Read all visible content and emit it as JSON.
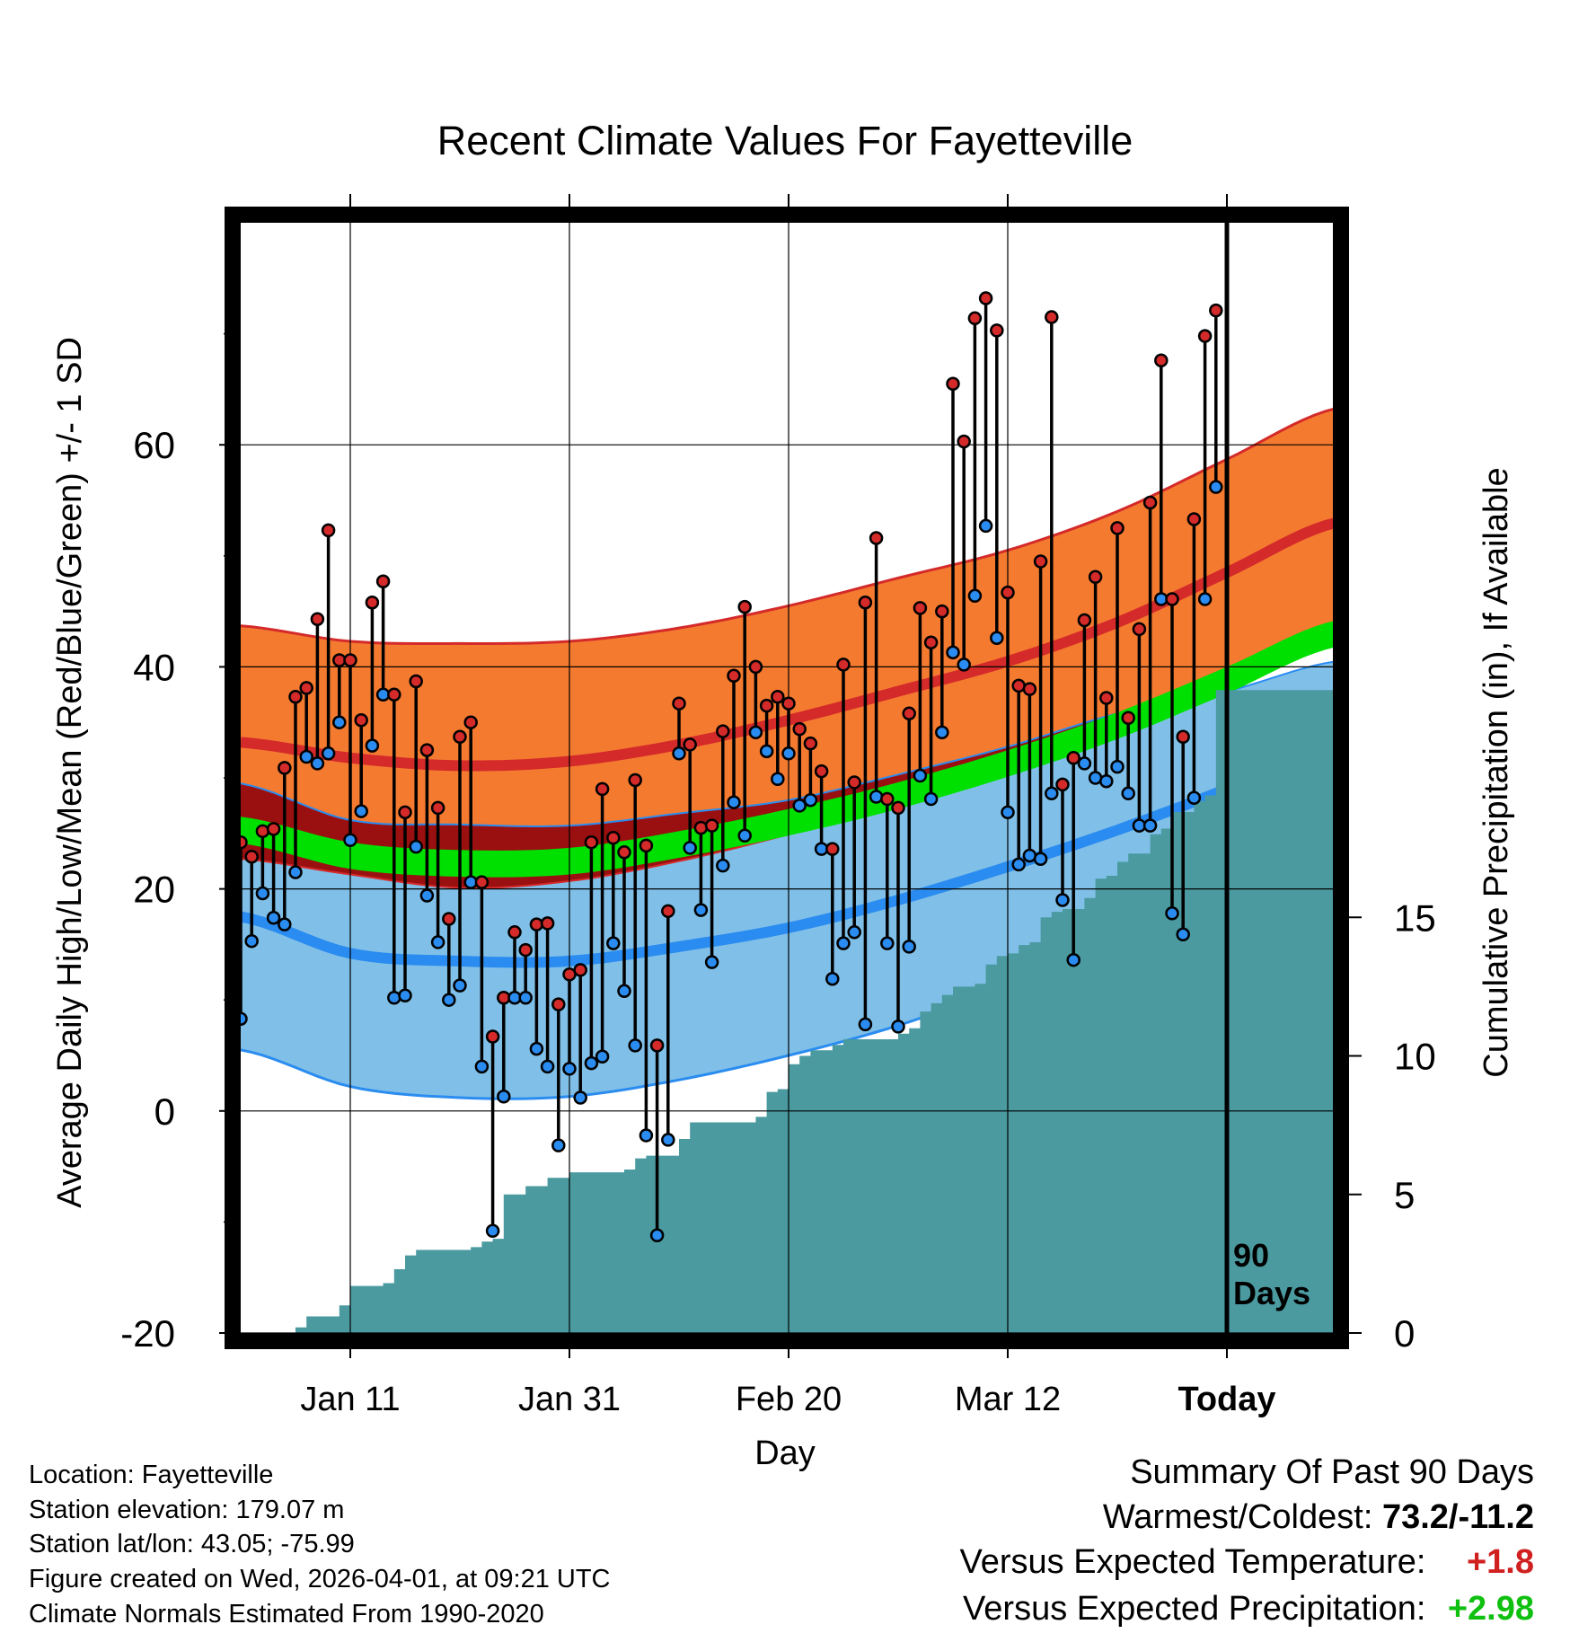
{
  "colors": {
    "high": "#d42a2a",
    "low": "#2a8cf0",
    "mean_band": "#00e000",
    "high_band": "#f47a30",
    "low_band": "#80c0e8",
    "overlap_band": "#9a1010",
    "precip": "#4a9aa0",
    "bar": "#000000",
    "warm_text": "#d02020",
    "wet_text": "#10c010"
  },
  "chart_data": {
    "type": "range-dot",
    "title": "Recent Climate Values For Fayetteville",
    "xlabel": "Day",
    "ylabel": "Average Daily High/Low/Mean (Red/Blue/Green) +/- 1 SD",
    "y2label": "Cumulative Precipitation (in), If Available",
    "ylim": [
      -20,
      80
    ],
    "yticks": [
      "-20",
      "0",
      "20",
      "40",
      "60"
    ],
    "y2lim": [
      0,
      40
    ],
    "y2ticks": [
      "0",
      "5",
      "10",
      "15"
    ],
    "xlim": [
      0,
      100
    ],
    "xtick_days": [
      10,
      30,
      50,
      70,
      90
    ],
    "xtick_labels": [
      "Jan 11",
      "Jan 31",
      "Feb 20",
      "Mar 12",
      "Today"
    ],
    "today_day": 90,
    "today_label_line1": "90",
    "today_label_line2": "Days",
    "normals": {
      "days": [
        0,
        10,
        20,
        30,
        40,
        50,
        60,
        70,
        80,
        90,
        100
      ],
      "high_mean": [
        33.2,
        31.8,
        31.1,
        31.5,
        33.0,
        35.2,
        37.8,
        40.5,
        44.0,
        48.5,
        53.0
      ],
      "high_sd": [
        10.5,
        10.5,
        11.0,
        10.8,
        10.5,
        10.3,
        10.2,
        10.0,
        10.0,
        10.2,
        10.3
      ],
      "low_mean": [
        17.5,
        14.2,
        13.5,
        13.5,
        14.8,
        16.5,
        19.0,
        22.0,
        25.3,
        29.0,
        33.0
      ],
      "low_sd": [
        12.0,
        12.0,
        12.3,
        12.2,
        12.0,
        11.5,
        11.3,
        10.8,
        10.5,
        8.8,
        7.5
      ],
      "mean_mean": [
        25.3,
        23.0,
        22.3,
        22.5,
        24.0,
        26.0,
        28.4,
        31.3,
        34.7,
        38.8,
        43.0
      ],
      "mean_halfwidth": [
        1.2,
        1.2,
        1.2,
        1.2,
        1.2,
        1.2,
        1.2,
        1.2,
        1.2,
        1.2,
        1.2
      ]
    },
    "observations": [
      {
        "day": 0,
        "high": 24.2,
        "low": 8.3
      },
      {
        "day": 1,
        "high": 22.9,
        "low": 15.3
      },
      {
        "day": 2,
        "high": 25.2,
        "low": 19.6
      },
      {
        "day": 3,
        "high": 25.4,
        "low": 17.4
      },
      {
        "day": 4,
        "high": 30.9,
        "low": 16.8
      },
      {
        "day": 5,
        "high": 37.3,
        "low": 21.5
      },
      {
        "day": 6,
        "high": 38.1,
        "low": 31.9
      },
      {
        "day": 7,
        "high": 44.3,
        "low": 31.3
      },
      {
        "day": 8,
        "high": 52.3,
        "low": 32.2
      },
      {
        "day": 9,
        "high": 40.6,
        "low": 35.0
      },
      {
        "day": 10,
        "high": 40.6,
        "low": 24.4
      },
      {
        "day": 11,
        "high": 35.2,
        "low": 27.0
      },
      {
        "day": 12,
        "high": 45.8,
        "low": 32.9
      },
      {
        "day": 13,
        "high": 47.7,
        "low": 37.5
      },
      {
        "day": 14,
        "high": 37.5,
        "low": 10.2
      },
      {
        "day": 15,
        "high": 26.9,
        "low": 10.4
      },
      {
        "day": 16,
        "high": 38.7,
        "low": 23.8
      },
      {
        "day": 17,
        "high": 32.5,
        "low": 19.4
      },
      {
        "day": 18,
        "high": 27.3,
        "low": 15.2
      },
      {
        "day": 19,
        "high": 17.3,
        "low": 10.0
      },
      {
        "day": 20,
        "high": 33.7,
        "low": 11.3
      },
      {
        "day": 21,
        "high": 35.0,
        "low": 20.6
      },
      {
        "day": 22,
        "high": 20.6,
        "low": 4.0
      },
      {
        "day": 23,
        "high": 6.7,
        "low": -10.8
      },
      {
        "day": 24,
        "high": 10.2,
        "low": 1.3
      },
      {
        "day": 25,
        "high": 16.1,
        "low": 10.2
      },
      {
        "day": 26,
        "high": 14.5,
        "low": 10.2
      },
      {
        "day": 27,
        "high": 16.8,
        "low": 5.6
      },
      {
        "day": 28,
        "high": 16.9,
        "low": 4.0
      },
      {
        "day": 29,
        "high": 9.6,
        "low": -3.1
      },
      {
        "day": 30,
        "high": 12.3,
        "low": 3.8
      },
      {
        "day": 31,
        "high": 12.7,
        "low": 1.2
      },
      {
        "day": 32,
        "high": 24.2,
        "low": 4.3
      },
      {
        "day": 33,
        "high": 29.0,
        "low": 4.9
      },
      {
        "day": 34,
        "high": 24.6,
        "low": 15.1
      },
      {
        "day": 35,
        "high": 23.3,
        "low": 10.8
      },
      {
        "day": 36,
        "high": 29.8,
        "low": 5.9
      },
      {
        "day": 37,
        "high": 23.9,
        "low": -2.2
      },
      {
        "day": 38,
        "high": 5.9,
        "low": -11.2
      },
      {
        "day": 39,
        "high": 18.0,
        "low": -2.6
      },
      {
        "day": 40,
        "high": 36.7,
        "low": 32.2
      },
      {
        "day": 41,
        "high": 33.0,
        "low": 23.7
      },
      {
        "day": 42,
        "high": 25.5,
        "low": 18.1
      },
      {
        "day": 43,
        "high": 25.7,
        "low": 13.4
      },
      {
        "day": 44,
        "high": 34.2,
        "low": 22.1
      },
      {
        "day": 45,
        "high": 39.2,
        "low": 27.8
      },
      {
        "day": 46,
        "high": 45.4,
        "low": 24.8
      },
      {
        "day": 47,
        "high": 40.0,
        "low": 34.1
      },
      {
        "day": 48,
        "high": 36.5,
        "low": 32.4
      },
      {
        "day": 49,
        "high": 37.3,
        "low": 29.9
      },
      {
        "day": 50,
        "high": 36.7,
        "low": 32.2
      },
      {
        "day": 51,
        "high": 34.4,
        "low": 27.5
      },
      {
        "day": 52,
        "high": 33.1,
        "low": 28.0
      },
      {
        "day": 53,
        "high": 30.6,
        "low": 23.6
      },
      {
        "day": 54,
        "high": 23.6,
        "low": 11.9
      },
      {
        "day": 55,
        "high": 40.2,
        "low": 15.1
      },
      {
        "day": 56,
        "high": 29.6,
        "low": 16.1
      },
      {
        "day": 57,
        "high": 45.8,
        "low": 7.8
      },
      {
        "day": 58,
        "high": 51.6,
        "low": 28.3
      },
      {
        "day": 59,
        "high": 28.1,
        "low": 15.1
      },
      {
        "day": 60,
        "high": 27.3,
        "low": 7.6
      },
      {
        "day": 61,
        "high": 35.8,
        "low": 14.8
      },
      {
        "day": 62,
        "high": 45.3,
        "low": 30.2
      },
      {
        "day": 63,
        "high": 42.2,
        "low": 28.1
      },
      {
        "day": 64,
        "high": 45.0,
        "low": 34.1
      },
      {
        "day": 65,
        "high": 65.5,
        "low": 41.3
      },
      {
        "day": 66,
        "high": 60.3,
        "low": 40.2
      },
      {
        "day": 67,
        "high": 71.4,
        "low": 46.4
      },
      {
        "day": 68,
        "high": 73.2,
        "low": 52.7
      },
      {
        "day": 69,
        "high": 70.3,
        "low": 42.6
      },
      {
        "day": 70,
        "high": 46.7,
        "low": 26.9
      },
      {
        "day": 71,
        "high": 38.3,
        "low": 22.2
      },
      {
        "day": 72,
        "high": 38.0,
        "low": 23.0
      },
      {
        "day": 73,
        "high": 49.5,
        "low": 22.7
      },
      {
        "day": 74,
        "high": 71.5,
        "low": 28.6
      },
      {
        "day": 75,
        "high": 29.4,
        "low": 19.0
      },
      {
        "day": 76,
        "high": 31.8,
        "low": 13.6
      },
      {
        "day": 77,
        "high": 44.2,
        "low": 31.3
      },
      {
        "day": 78,
        "high": 48.1,
        "low": 30.0
      },
      {
        "day": 79,
        "high": 37.2,
        "low": 29.7
      },
      {
        "day": 80,
        "high": 52.5,
        "low": 31.0
      },
      {
        "day": 81,
        "high": 35.4,
        "low": 28.6
      },
      {
        "day": 82,
        "high": 43.4,
        "low": 25.7
      },
      {
        "day": 83,
        "high": 54.8,
        "low": 25.7
      },
      {
        "day": 84,
        "high": 67.6,
        "low": 46.1
      },
      {
        "day": 85,
        "high": 46.1,
        "low": 17.8
      },
      {
        "day": 86,
        "high": 33.7,
        "low": 15.9
      },
      {
        "day": 87,
        "high": 53.3,
        "low": 28.2
      },
      {
        "day": 88,
        "high": 69.8,
        "low": 46.1
      },
      {
        "day": 89,
        "high": 72.1,
        "low": 56.2
      }
    ],
    "precip_steps": [
      {
        "day": 5,
        "value": 0.2
      },
      {
        "day": 6,
        "value": 0.6
      },
      {
        "day": 8,
        "value": 0.6
      },
      {
        "day": 9,
        "value": 1.0
      },
      {
        "day": 10,
        "value": 1.7
      },
      {
        "day": 13,
        "value": 1.8
      },
      {
        "day": 14,
        "value": 2.3
      },
      {
        "day": 15,
        "value": 2.8
      },
      {
        "day": 16,
        "value": 3.0
      },
      {
        "day": 20,
        "value": 3.0
      },
      {
        "day": 21,
        "value": 3.1
      },
      {
        "day": 22,
        "value": 3.3
      },
      {
        "day": 23,
        "value": 3.4
      },
      {
        "day": 24,
        "value": 5.0
      },
      {
        "day": 26,
        "value": 5.3
      },
      {
        "day": 28,
        "value": 5.6
      },
      {
        "day": 30,
        "value": 5.8
      },
      {
        "day": 35,
        "value": 5.9
      },
      {
        "day": 36,
        "value": 6.3
      },
      {
        "day": 37,
        "value": 6.4
      },
      {
        "day": 39,
        "value": 6.4
      },
      {
        "day": 40,
        "value": 7.0
      },
      {
        "day": 41,
        "value": 7.6
      },
      {
        "day": 47,
        "value": 7.8
      },
      {
        "day": 48,
        "value": 8.7
      },
      {
        "day": 49,
        "value": 8.8
      },
      {
        "day": 50,
        "value": 9.7
      },
      {
        "day": 51,
        "value": 10.0
      },
      {
        "day": 52,
        "value": 10.2
      },
      {
        "day": 53,
        "value": 10.2
      },
      {
        "day": 54,
        "value": 10.4
      },
      {
        "day": 55,
        "value": 10.6
      },
      {
        "day": 60,
        "value": 10.8
      },
      {
        "day": 61,
        "value": 11.0
      },
      {
        "day": 62,
        "value": 11.6
      },
      {
        "day": 63,
        "value": 11.9
      },
      {
        "day": 64,
        "value": 12.2
      },
      {
        "day": 65,
        "value": 12.5
      },
      {
        "day": 67,
        "value": 12.6
      },
      {
        "day": 68,
        "value": 13.3
      },
      {
        "day": 69,
        "value": 13.6
      },
      {
        "day": 70,
        "value": 13.7
      },
      {
        "day": 71,
        "value": 14.0
      },
      {
        "day": 72,
        "value": 14.1
      },
      {
        "day": 73,
        "value": 15.0
      },
      {
        "day": 74,
        "value": 15.2
      },
      {
        "day": 75,
        "value": 15.3
      },
      {
        "day": 77,
        "value": 15.7
      },
      {
        "day": 78,
        "value": 16.4
      },
      {
        "day": 79,
        "value": 16.5
      },
      {
        "day": 80,
        "value": 17.0
      },
      {
        "day": 81,
        "value": 17.3
      },
      {
        "day": 82,
        "value": 17.3
      },
      {
        "day": 83,
        "value": 18.0
      },
      {
        "day": 84,
        "value": 18.2
      },
      {
        "day": 85,
        "value": 18.8
      },
      {
        "day": 86,
        "value": 18.8
      },
      {
        "day": 87,
        "value": 19.2
      },
      {
        "day": 88,
        "value": 19.4
      },
      {
        "day": 89,
        "value": 23.2
      },
      {
        "day": 100,
        "value": 23.2
      }
    ]
  },
  "info": {
    "location": "Location: Fayetteville",
    "elevation": "Station elevation: 179.07 m",
    "latlon": "Station lat/lon: 43.05; -75.99",
    "created": "Figure created on Wed, 2026-04-01, at 09:21 UTC",
    "normals": "Climate Normals Estimated From 1990-2020"
  },
  "summary": {
    "title": "Summary Of Past 90 Days",
    "warmest_label": "Warmest/Coldest:",
    "warmest_value": "73.2/-11.2",
    "temp_label": "Versus Expected Temperature:",
    "temp_value": "+1.8",
    "precip_label": "Versus Expected Precipitation:",
    "precip_value": "+2.98"
  }
}
